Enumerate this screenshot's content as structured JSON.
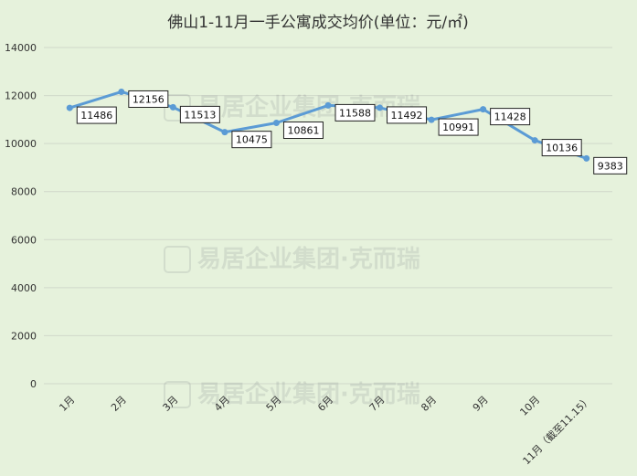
{
  "chart_data": {
    "type": "line",
    "title": "佛山1-11月一手公寓成交均价(单位：元/㎡)",
    "categories": [
      "1月",
      "2月",
      "3月",
      "4月",
      "5月",
      "6月",
      "7月",
      "8月",
      "9月",
      "10月",
      "11月（截至11.15）"
    ],
    "series": [
      {
        "values": [
          11486,
          12156,
          11513,
          10475,
          10861,
          11588,
          11492,
          10991,
          11428,
          10136,
          9383
        ],
        "color": "#5b9bd5"
      }
    ],
    "y_ticks": [
      0,
      2000,
      4000,
      6000,
      8000,
      10000,
      12000,
      14000
    ],
    "ylim": [
      0,
      14000
    ],
    "grid": true,
    "legend": "none",
    "watermark": "易居企业集团·克而瑞"
  }
}
